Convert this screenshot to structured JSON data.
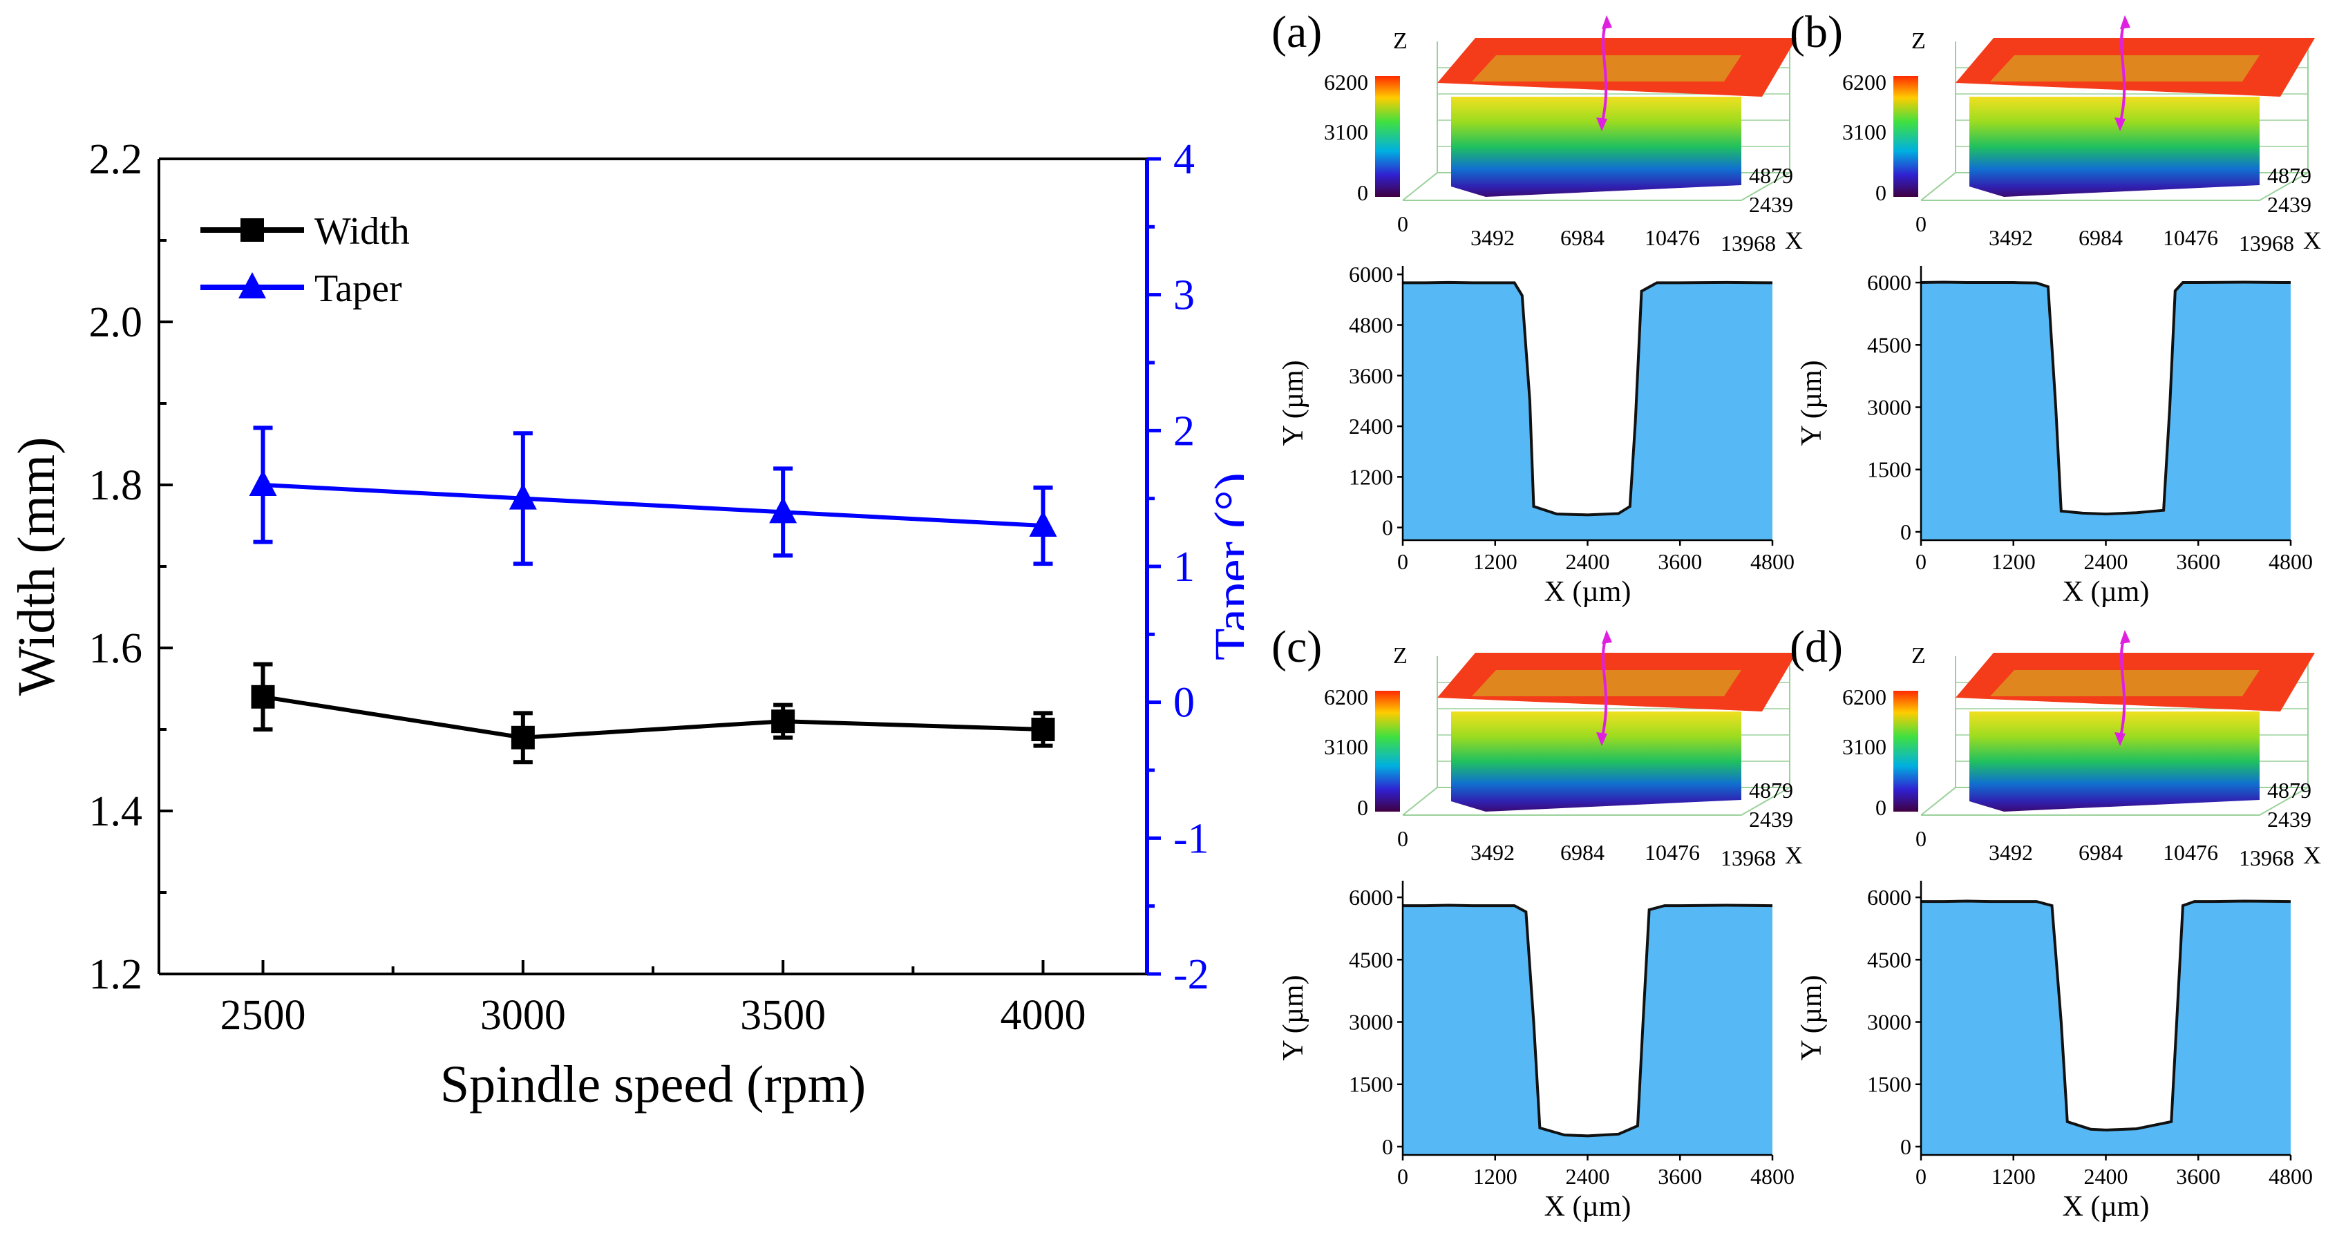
{
  "chart_data": [
    {
      "type": "line",
      "x": [
        2500,
        3000,
        3500,
        4000
      ],
      "xlabel": "Spindle speed (rpm)",
      "xticks": [
        2500,
        3000,
        3500,
        4000
      ],
      "xlim": [
        2300,
        4200
      ],
      "ylabel": "Width (mm)",
      "ylim": [
        1.2,
        2.2
      ],
      "yticks": [
        "1.2",
        "1.4",
        "1.6",
        "1.8",
        "2.0",
        "2.2"
      ],
      "y2label": "Taper (°)",
      "y2lim": [
        -2,
        4
      ],
      "y2ticks": [
        "-2",
        "-1",
        "0",
        "1",
        "2",
        "3",
        "4"
      ],
      "legend_position": "top-left",
      "grid": false,
      "series": [
        {
          "name": "Width",
          "axis": "left",
          "color": "#000000",
          "marker": "square",
          "values": [
            1.54,
            1.49,
            1.51,
            1.5
          ],
          "errors": [
            0.04,
            0.03,
            0.02,
            0.02
          ]
        },
        {
          "name": "Taper",
          "axis": "right",
          "color": "#0000ff",
          "marker": "triangle",
          "values": [
            1.6,
            1.5,
            1.4,
            1.3
          ],
          "errors": [
            0.42,
            0.48,
            0.32,
            0.28
          ]
        }
      ]
    },
    {
      "type": "area",
      "label": "(a)",
      "x": [
        0,
        300,
        600,
        900,
        1200,
        1450,
        1550,
        1650,
        1700,
        2000,
        2400,
        2800,
        2950,
        3020,
        3100,
        3300,
        3600,
        4200,
        4800
      ],
      "y": [
        5800,
        5800,
        5810,
        5800,
        5800,
        5800,
        5500,
        3000,
        500,
        320,
        300,
        330,
        500,
        2500,
        5600,
        5800,
        5800,
        5810,
        5800
      ],
      "xticks": [
        "0",
        "1200",
        "2400",
        "3600",
        "4800"
      ],
      "yticks": [
        "0",
        "1200",
        "2400",
        "3600",
        "4800",
        "6000"
      ],
      "ylim": [
        -300,
        6200
      ],
      "xlabel": "X (µm)",
      "ylabel": "Y (µm)",
      "surface3d": {
        "colorbar_ticks": [
          "6200",
          "3100",
          "0"
        ],
        "x_ticks": [
          "0",
          "3492",
          "6984",
          "10476",
          "13968"
        ],
        "y_ticks": [
          "4879",
          "2439"
        ],
        "axis_x": "X",
        "axis_z": "Z"
      }
    },
    {
      "type": "area",
      "label": "(b)",
      "x": [
        0,
        300,
        600,
        900,
        1200,
        1500,
        1650,
        1750,
        1820,
        2100,
        2400,
        2800,
        3150,
        3230,
        3300,
        3400,
        3600,
        4200,
        4800
      ],
      "y": [
        6000,
        6010,
        6000,
        6000,
        6000,
        5990,
        5900,
        3000,
        500,
        450,
        430,
        460,
        520,
        3000,
        5800,
        6000,
        6000,
        6010,
        6000
      ],
      "xticks": [
        "0",
        "1200",
        "2400",
        "3600",
        "4800"
      ],
      "yticks": [
        "0",
        "1500",
        "3000",
        "4500",
        "6000"
      ],
      "ylim": [
        -200,
        6400
      ],
      "xlabel": "X (µm)",
      "ylabel": "Y (µm)",
      "surface3d": {
        "colorbar_ticks": [
          "6200",
          "3100",
          "0"
        ],
        "x_ticks": [
          "0",
          "3492",
          "6984",
          "10476",
          "13968"
        ],
        "y_ticks": [
          "4879",
          "2439"
        ],
        "axis_x": "X",
        "axis_z": "Z"
      }
    },
    {
      "type": "area",
      "label": "(c)",
      "x": [
        0,
        300,
        600,
        900,
        1200,
        1450,
        1600,
        1700,
        1780,
        2100,
        2400,
        2800,
        3050,
        3120,
        3200,
        3400,
        3600,
        4200,
        4800
      ],
      "y": [
        5800,
        5800,
        5810,
        5800,
        5800,
        5800,
        5650,
        3000,
        450,
        280,
        260,
        300,
        500,
        3000,
        5700,
        5800,
        5800,
        5810,
        5800
      ],
      "xticks": [
        "0",
        "1200",
        "2400",
        "3600",
        "4800"
      ],
      "yticks": [
        "0",
        "1500",
        "3000",
        "4500",
        "6000"
      ],
      "ylim": [
        -200,
        6400
      ],
      "xlabel": "X (µm)",
      "ylabel": "Y (µm)",
      "surface3d": {
        "colorbar_ticks": [
          "6200",
          "3100",
          "0"
        ],
        "x_ticks": [
          "0",
          "3492",
          "6984",
          "10476",
          "13968"
        ],
        "y_ticks": [
          "4879",
          "2439"
        ],
        "axis_x": "X",
        "axis_z": "Z"
      }
    },
    {
      "type": "area",
      "label": "(d)",
      "x": [
        0,
        300,
        600,
        900,
        1200,
        1500,
        1700,
        1820,
        1900,
        2200,
        2400,
        2800,
        3250,
        3320,
        3400,
        3550,
        3800,
        4200,
        4800
      ],
      "y": [
        5900,
        5900,
        5910,
        5900,
        5900,
        5900,
        5800,
        3000,
        600,
        420,
        400,
        430,
        600,
        3000,
        5800,
        5900,
        5900,
        5910,
        5900
      ],
      "xticks": [
        "0",
        "1200",
        "2400",
        "3600",
        "4800"
      ],
      "yticks": [
        "0",
        "1500",
        "3000",
        "4500",
        "6000"
      ],
      "ylim": [
        -200,
        6400
      ],
      "xlabel": "X (µm)",
      "ylabel": "Y (µm)",
      "surface3d": {
        "colorbar_ticks": [
          "6200",
          "3100",
          "0"
        ],
        "x_ticks": [
          "0",
          "3492",
          "6984",
          "10476",
          "13968"
        ],
        "y_ticks": [
          "4879",
          "2439"
        ],
        "axis_x": "X",
        "axis_z": "Z"
      }
    }
  ],
  "colors": {
    "width_series": "#000000",
    "taper_series": "#0000ff",
    "profile_fill": "#56b9f6",
    "surface_top": "#f43b1a",
    "arrow": "#e020e0"
  }
}
